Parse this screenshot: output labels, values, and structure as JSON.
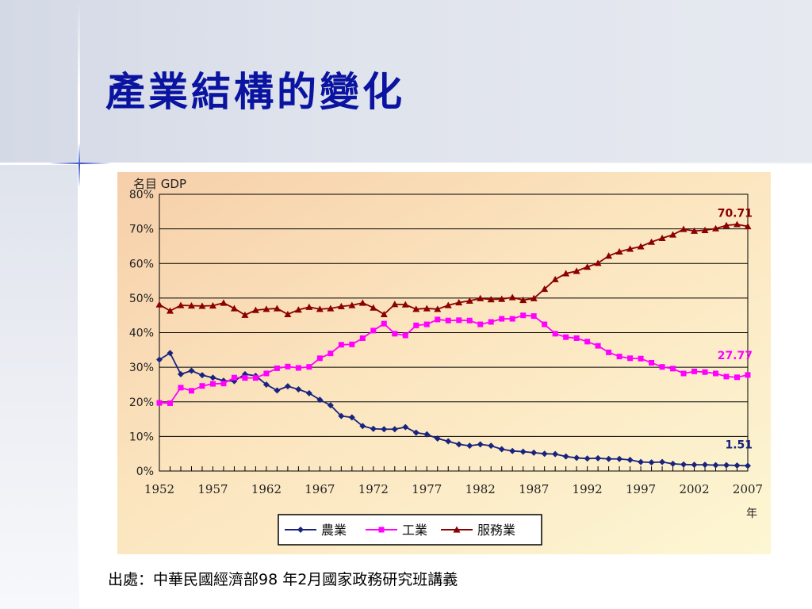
{
  "slide": {
    "title": "產業結構的變化",
    "source": "出處：中華民國經濟部98 年2月國家政務研究班講義"
  },
  "chart_data": {
    "type": "line",
    "ylabel": "名目 GDP",
    "xlabel": "年",
    "ylim": [
      0,
      80
    ],
    "yticks": [
      "0%",
      "10%",
      "20%",
      "30%",
      "40%",
      "50%",
      "60%",
      "70%",
      "80%"
    ],
    "xlim": [
      1952,
      2007
    ],
    "xticks": [
      "1952",
      "1957",
      "1962",
      "1967",
      "1972",
      "1977",
      "1982",
      "1987",
      "1992",
      "1997",
      "2002",
      "2007"
    ],
    "grid": "horizontal",
    "legend_position": "bottom",
    "x": [
      1952,
      1953,
      1954,
      1955,
      1956,
      1957,
      1958,
      1959,
      1960,
      1961,
      1962,
      1963,
      1964,
      1965,
      1966,
      1967,
      1968,
      1969,
      1970,
      1971,
      1972,
      1973,
      1974,
      1975,
      1976,
      1977,
      1978,
      1979,
      1980,
      1981,
      1982,
      1983,
      1984,
      1985,
      1986,
      1987,
      1988,
      1989,
      1990,
      1991,
      1992,
      1993,
      1994,
      1995,
      1996,
      1997,
      1998,
      1999,
      2000,
      2001,
      2002,
      2003,
      2004,
      2005,
      2006,
      2007
    ],
    "series": [
      {
        "name": "農業",
        "color": "#1a237e",
        "marker": "diamond",
        "end_label": "1.51",
        "values": [
          32.2,
          34.1,
          28,
          29,
          27.7,
          27,
          26.1,
          26,
          28,
          27.5,
          25,
          23.3,
          24.5,
          23.6,
          22.5,
          20.6,
          19,
          15.9,
          15.5,
          13,
          12.2,
          12.1,
          12.1,
          12.7,
          11.1,
          10.6,
          9.4,
          8.6,
          7.7,
          7.3,
          7.7,
          7.3,
          6.3,
          5.8,
          5.6,
          5.3,
          5,
          4.9,
          4.2,
          3.8,
          3.6,
          3.7,
          3.5,
          3.5,
          3.2,
          2.6,
          2.5,
          2.6,
          2.1,
          1.9,
          1.8,
          1.8,
          1.7,
          1.7,
          1.6,
          1.51
        ]
      },
      {
        "name": "工業",
        "color": "#ff00ff",
        "marker": "square",
        "end_label": "27.77",
        "values": [
          19.7,
          19.6,
          24.1,
          23.2,
          24.6,
          25.2,
          25.3,
          27,
          26.9,
          26.9,
          28.2,
          29.7,
          30.2,
          29.8,
          30.1,
          32.6,
          34,
          36.5,
          36.6,
          38.4,
          40.6,
          42.6,
          39.7,
          39.2,
          42.1,
          42.4,
          43.8,
          43.5,
          43.6,
          43.5,
          42.4,
          43.1,
          44,
          44,
          45,
          44.8,
          42.4,
          39.7,
          38.7,
          38.4,
          37.4,
          36.2,
          34.3,
          33.1,
          32.6,
          32.5,
          31.3,
          30.1,
          29.6,
          28.2,
          28.8,
          28.6,
          28.2,
          27.3,
          27.1,
          27.77
        ]
      },
      {
        "name": "服務業",
        "color": "#8b0000",
        "marker": "triangle",
        "end_label": "70.71",
        "values": [
          48.1,
          46.3,
          47.9,
          47.8,
          47.7,
          47.8,
          48.6,
          47,
          45.1,
          46.5,
          46.8,
          47,
          45.3,
          46.6,
          47.4,
          46.8,
          47,
          47.6,
          47.9,
          48.6,
          47.2,
          45.3,
          48.2,
          48.1,
          46.8,
          47,
          46.8,
          47.9,
          48.7,
          49.2,
          49.9,
          49.6,
          49.7,
          50.2,
          49.4,
          49.9,
          52.6,
          55.4,
          57.1,
          57.8,
          59,
          60.1,
          62.2,
          63.4,
          64.2,
          64.9,
          66.2,
          67.3,
          68.3,
          69.9,
          69.4,
          69.6,
          70.1,
          71,
          71.3,
          70.71
        ]
      }
    ]
  }
}
